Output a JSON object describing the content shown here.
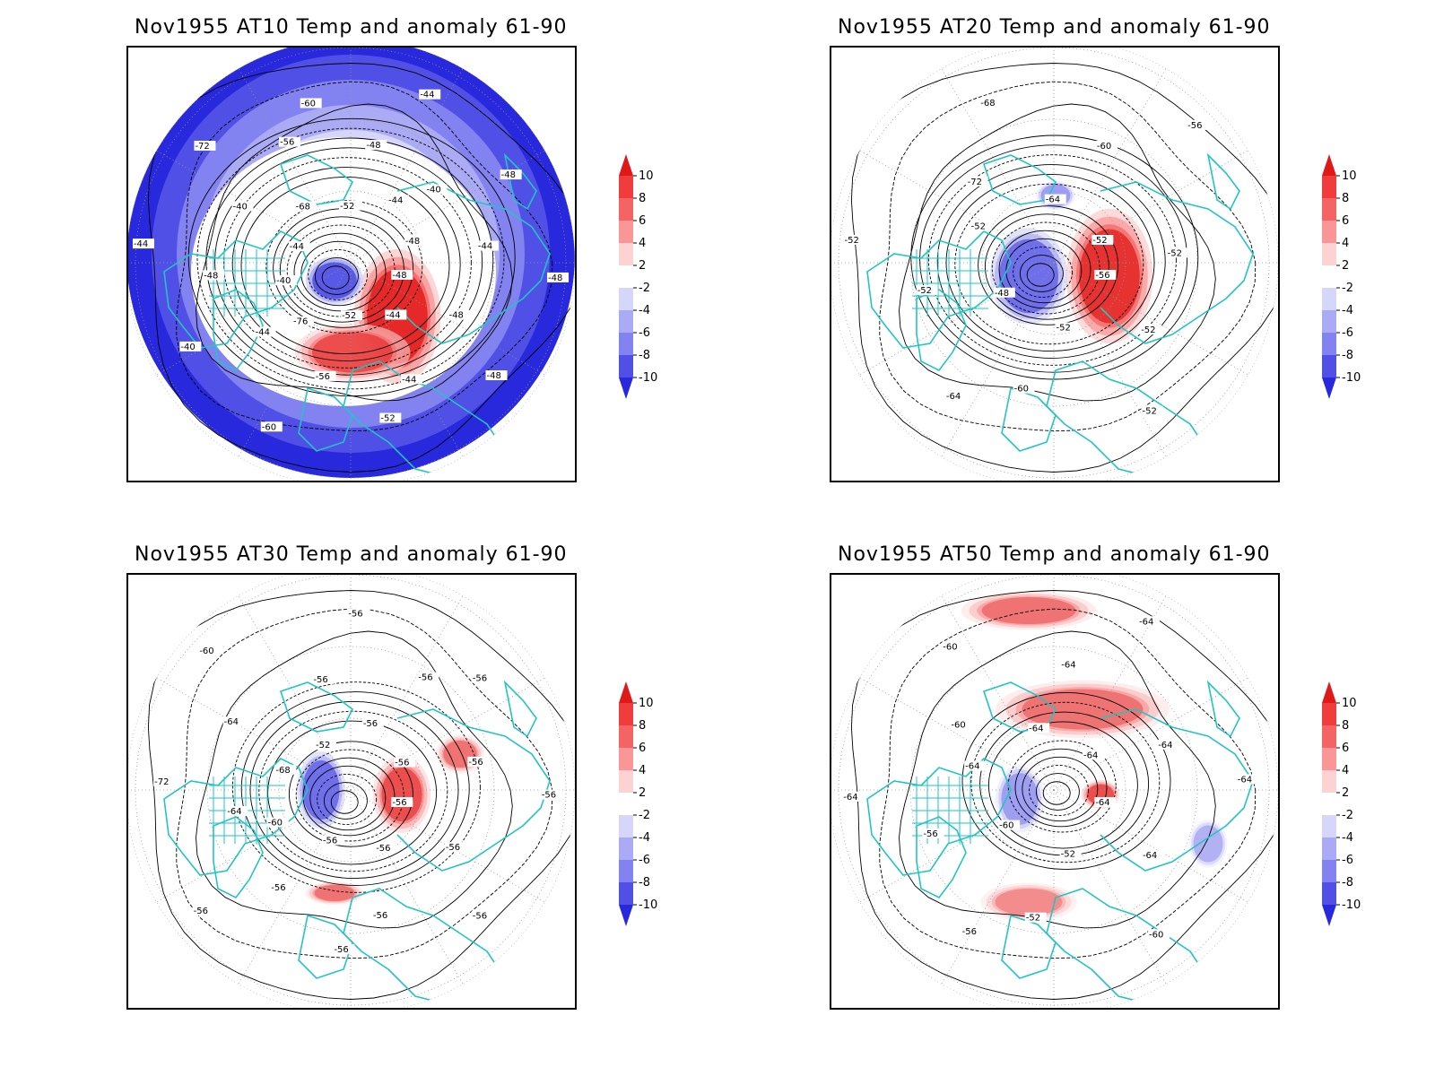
{
  "panels": [
    {
      "title": "Nov1955 AT10 Temp and anomaly 61-90",
      "contour_labels": [
        "-48",
        "-48",
        "-48",
        "-44",
        "-44",
        "-52",
        "-52",
        "-56",
        "-60",
        "-76",
        "-44",
        "-40",
        "-40",
        "-48",
        "-44",
        "-44",
        "-40",
        "-72",
        "-68",
        "-56",
        "-60",
        "-52",
        "-48",
        "-44",
        "-44",
        "-40",
        "-48",
        "-48",
        "-44",
        "-48"
      ]
    },
    {
      "title": "Nov1955 AT20 Temp and anomaly 61-90",
      "contour_labels": [
        "-56",
        "-52",
        "-52",
        "-52",
        "-60",
        "-64",
        "-48",
        "-52",
        "-52",
        "-52",
        "-72",
        "-68",
        "-64",
        "-60",
        "-56",
        "-52",
        "-52"
      ]
    },
    {
      "title": "Nov1955 AT30 Temp and anomaly 61-90",
      "contour_labels": [
        "-56",
        "-56",
        "-56",
        "-56",
        "-56",
        "-56",
        "-56",
        "-56",
        "-56",
        "-60",
        "-64",
        "-72",
        "-68",
        "-64",
        "-60",
        "-52",
        "-56",
        "-56",
        "-56",
        "-56",
        "-56",
        "-56",
        "-56",
        "-56"
      ]
    },
    {
      "title": "Nov1955 AT50 Temp and anomaly 61-90",
      "contour_labels": [
        "-64",
        "-64",
        "-60",
        "-52",
        "-52",
        "-56",
        "-60",
        "-56",
        "-64",
        "-64",
        "-60",
        "-60",
        "-64",
        "-64",
        "-64",
        "-64",
        "-64",
        "-64"
      ]
    }
  ],
  "colorbar": {
    "ticks": [
      "10",
      "8",
      "6",
      "4",
      "2",
      "-2",
      "-4",
      "-6",
      "-8",
      "-10"
    ],
    "colors": [
      "#e11818",
      "#f03c3c",
      "#f56464",
      "#fa9696",
      "#fdd2d2",
      "#ffffff",
      "#d6d6fa",
      "#aaaaf5",
      "#8282f0",
      "#5050e6",
      "#2828dc"
    ]
  },
  "style": {
    "coast_color": "#22c4c4",
    "contour_color": "#000000"
  }
}
